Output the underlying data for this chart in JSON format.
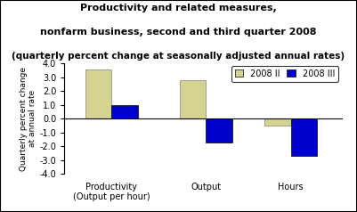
{
  "title_line1": "Productivity and related measures,",
  "title_line2": "nonfarm business, second and third quarter 2008",
  "title_line3": "(quarterly percent change at seasonally adjusted annual rates)",
  "categories": [
    "Productivity\n(Output per hour)",
    "Output",
    "Hours"
  ],
  "q2_values": [
    3.6,
    2.8,
    -0.5
  ],
  "q3_values": [
    1.0,
    -1.7,
    -2.7
  ],
  "q2_color": "#d4d490",
  "q3_color": "#0000cc",
  "ylabel": "Quarterly percent change\nat annual rate",
  "ylim": [
    -4.0,
    4.0
  ],
  "yticks": [
    -4.0,
    -3.0,
    -2.0,
    -1.0,
    0.0,
    1.0,
    2.0,
    3.0,
    4.0
  ],
  "legend_q2": "2008 II",
  "legend_q3": "2008 III",
  "background_color": "#ffffff",
  "bar_width": 0.28,
  "title_fontsize": 8.0,
  "axis_fontsize": 7.0
}
